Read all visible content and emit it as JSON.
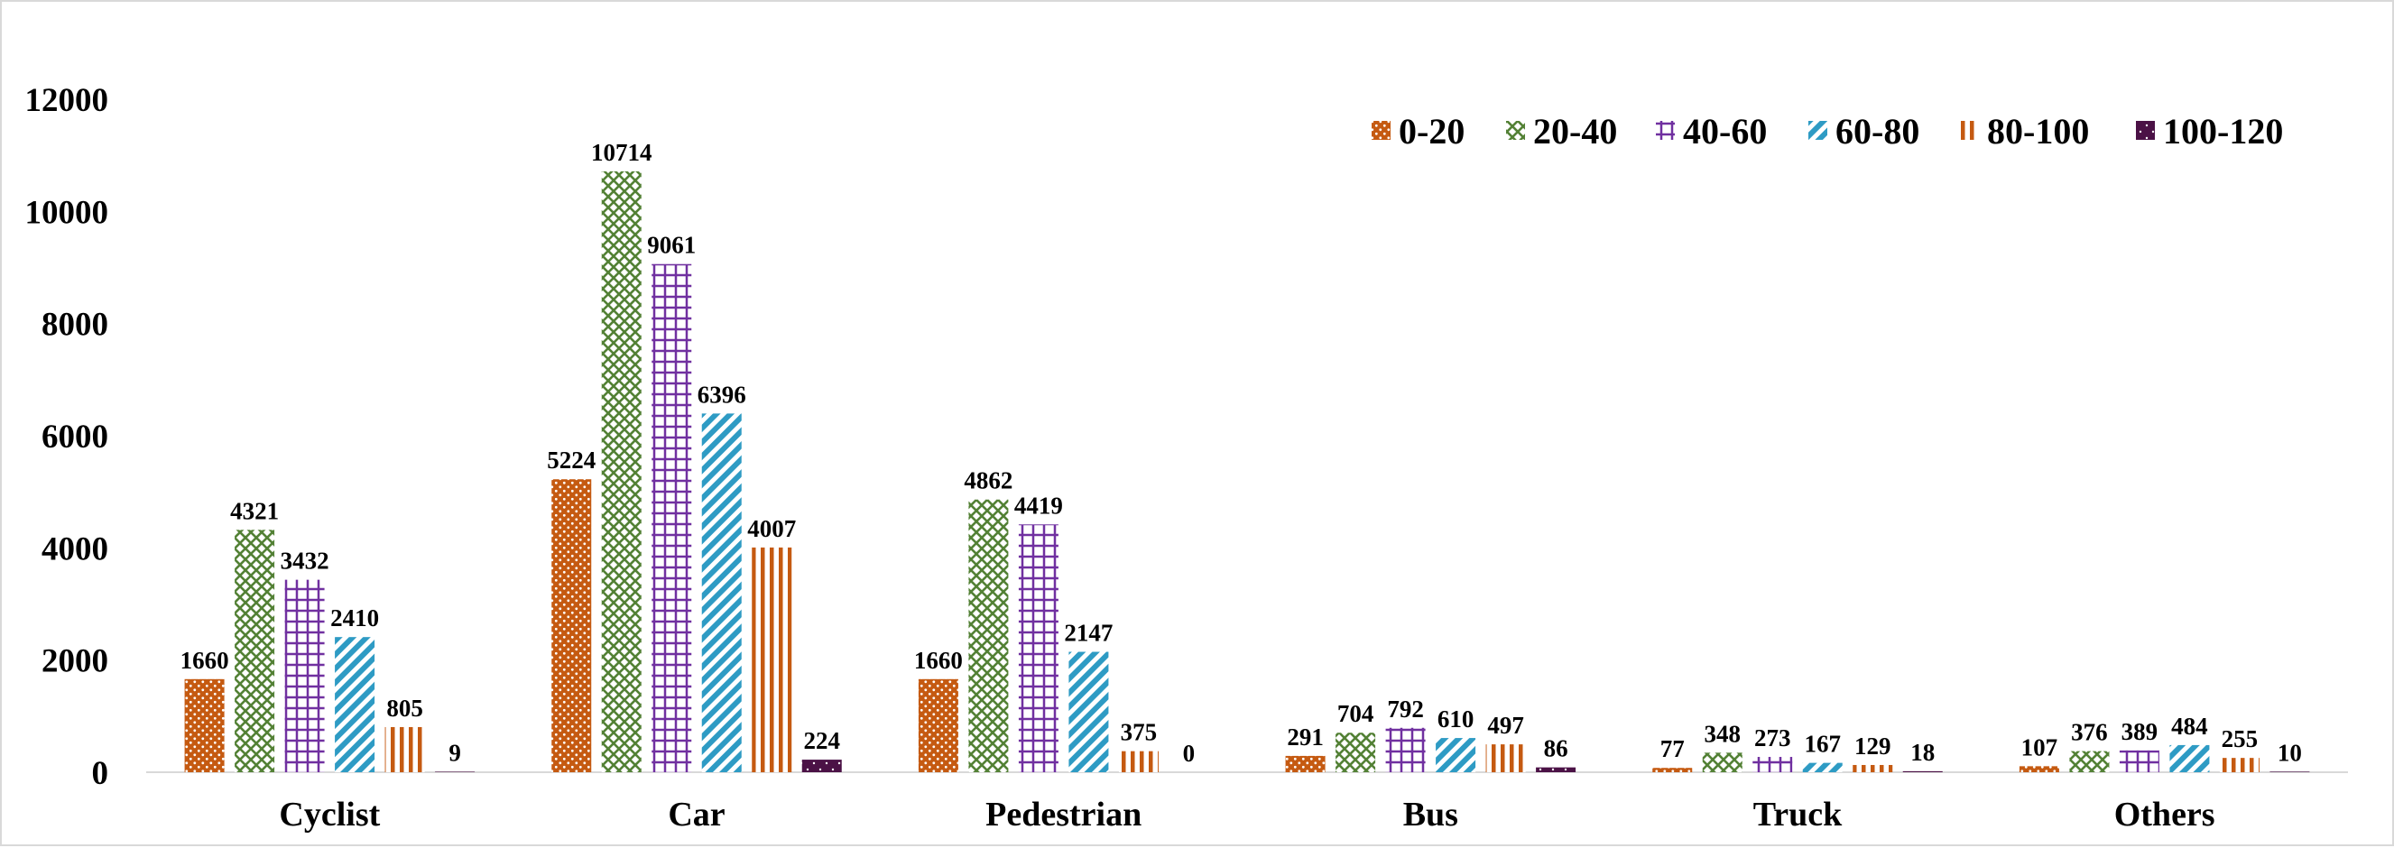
{
  "chart_data": {
    "type": "bar",
    "categories": [
      "Cyclist",
      "Car",
      "Pedestrian",
      "Bus",
      "Truck",
      "Others"
    ],
    "series": [
      {
        "name": "0-20",
        "values": [
          1660,
          5224,
          1660,
          291,
          77,
          107
        ],
        "color": "#C55A11",
        "pattern": "dots-dense"
      },
      {
        "name": "20-40",
        "values": [
          4321,
          10714,
          4862,
          704,
          348,
          376
        ],
        "color": "#538135",
        "pattern": "diamond-lattice"
      },
      {
        "name": "40-60",
        "values": [
          3432,
          9061,
          4419,
          792,
          273,
          389
        ],
        "color": "#7030A0",
        "pattern": "square-grid"
      },
      {
        "name": "60-80",
        "values": [
          2410,
          6396,
          2147,
          610,
          167,
          484
        ],
        "color": "#2E9BC4",
        "pattern": "diagonal-stripes"
      },
      {
        "name": "80-100",
        "values": [
          805,
          4007,
          375,
          497,
          129,
          255
        ],
        "color": "#C55A11",
        "pattern": "vertical-stripes"
      },
      {
        "name": "100-120",
        "values": [
          9,
          224,
          0,
          86,
          18,
          10
        ],
        "color": "#4B1246",
        "pattern": "sparse-dots"
      }
    ],
    "y_ticks": [
      0,
      2000,
      4000,
      6000,
      8000,
      10000,
      12000
    ],
    "ylim": [
      0,
      12000
    ],
    "grid": false,
    "legend_position": "top-right",
    "data_labels": true
  }
}
